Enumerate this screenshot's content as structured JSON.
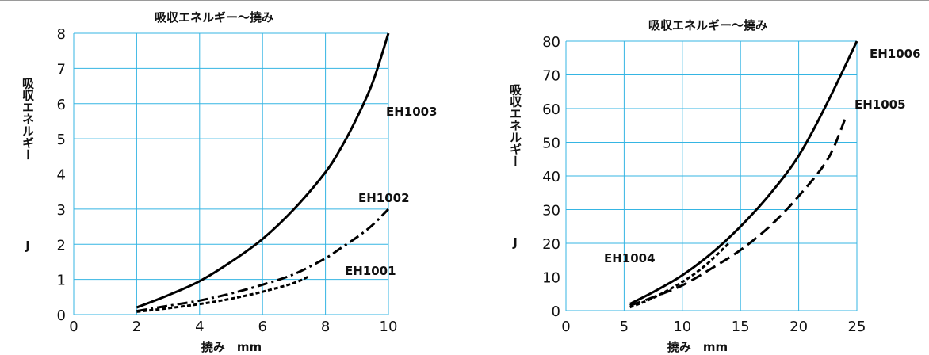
{
  "chart_data": [
    {
      "type": "line",
      "title": "吸収エネルギー～撓み",
      "xlabel": "撓み　mm",
      "ylabel": "吸収エネルギー",
      "ylabel_unit": "J",
      "xlim": [
        0,
        10
      ],
      "ylim": [
        0,
        8
      ],
      "x_ticks": [
        "0",
        "2",
        "4",
        "6",
        "8",
        "10"
      ],
      "y_ticks": [
        "0",
        "1",
        "2",
        "3",
        "4",
        "5",
        "6",
        "7",
        "8"
      ],
      "grid": true,
      "grid_color": "#35b5e3",
      "series": [
        {
          "name": "EH1003",
          "style": "solid",
          "x": [
            2.0,
            3.0,
            4.0,
            5.0,
            6.0,
            7.0,
            8.0,
            8.5,
            9.0,
            9.5,
            10.0
          ],
          "y": [
            0.2,
            0.55,
            0.95,
            1.5,
            2.15,
            3.0,
            4.05,
            4.75,
            5.6,
            6.6,
            8.0
          ]
        },
        {
          "name": "EH1002",
          "style": "dash-dot",
          "x": [
            2.0,
            3.0,
            4.0,
            5.0,
            6.0,
            7.0,
            8.0,
            8.5,
            9.0,
            9.5,
            10.0
          ],
          "y": [
            0.1,
            0.25,
            0.4,
            0.6,
            0.85,
            1.15,
            1.6,
            1.9,
            2.2,
            2.55,
            3.0
          ]
        },
        {
          "name": "EH1001",
          "style": "dotted",
          "x": [
            2.0,
            3.0,
            4.0,
            5.0,
            6.0,
            7.0,
            7.5
          ],
          "y": [
            0.08,
            0.18,
            0.3,
            0.45,
            0.65,
            0.9,
            1.1
          ]
        }
      ]
    },
    {
      "type": "line",
      "title": "吸収エネルギー～撓み",
      "xlabel": "撓み　mm",
      "ylabel": "吸収エネルギー",
      "ylabel_unit": "J",
      "xlim": [
        0,
        25
      ],
      "ylim": [
        0,
        80
      ],
      "x_ticks": [
        "0",
        "5",
        "10",
        "15",
        "20",
        "25"
      ],
      "y_ticks": [
        "0",
        "10",
        "20",
        "30",
        "40",
        "50",
        "60",
        "70",
        "80"
      ],
      "grid": true,
      "grid_color": "#35b5e3",
      "series": [
        {
          "name": "EH1006",
          "style": "solid",
          "x": [
            5.5,
            7.5,
            10.0,
            12.5,
            15.0,
            17.5,
            20.0,
            22.5,
            25.0
          ],
          "y": [
            2.0,
            5.5,
            10.5,
            17.0,
            25.0,
            34.5,
            46.0,
            62.0,
            80.0
          ]
        },
        {
          "name": "EH1005",
          "style": "dashed",
          "x": [
            5.5,
            7.5,
            10.0,
            12.5,
            15.0,
            17.5,
            20.0,
            22.5,
            24.0
          ],
          "y": [
            1.5,
            4.0,
            7.5,
            12.5,
            18.0,
            25.0,
            34.0,
            45.0,
            57.0
          ]
        },
        {
          "name": "EH1004",
          "style": "dotted",
          "x": [
            5.5,
            7.5,
            10.0,
            12.0,
            14.0
          ],
          "y": [
            1.0,
            3.8,
            8.5,
            13.5,
            20.0
          ]
        }
      ]
    }
  ]
}
